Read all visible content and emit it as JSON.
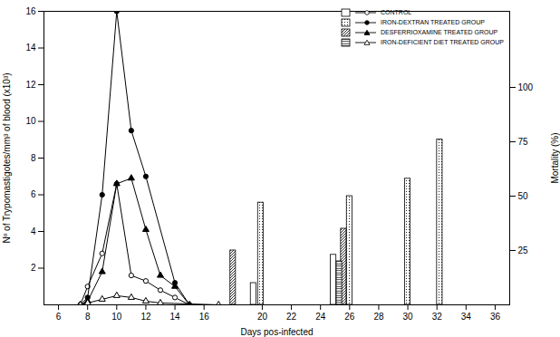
{
  "chart_data": {
    "type": "line",
    "x_label": "Days pos-infected",
    "y_label": "Nº of Trypomastigotes/mm³ of blood (x10³)",
    "y2_label": "Mortality (%)",
    "xlim": [
      5,
      37
    ],
    "xticks": [
      6,
      8,
      10,
      12,
      14,
      16,
      20,
      22,
      24,
      26,
      28,
      30,
      32,
      34,
      36
    ],
    "ylim": [
      0,
      16
    ],
    "yticks": [
      2,
      4,
      6,
      8,
      10,
      12,
      14,
      16
    ],
    "y2lim": [
      0,
      135
    ],
    "y2ticks": [
      25,
      50,
      75,
      100
    ],
    "legend": "top-right",
    "series": [
      {
        "name": "CONTROL",
        "color": "#000000",
        "marker": "circle-open",
        "x": [
          7.5,
          8,
          9,
          10,
          11,
          12,
          13,
          14,
          15
        ],
        "values": [
          0,
          1.0,
          2.8,
          6.6,
          1.6,
          1.3,
          0.8,
          0.4,
          0
        ],
        "mortality": {
          "type": "bar",
          "axis": "y2",
          "x": [
            19.4,
            24.9
          ],
          "values": [
            10,
            23
          ]
        }
      },
      {
        "name": "IRON-DEXTRAN TREATED GROUP",
        "color": "#000000",
        "marker": "circle",
        "x": [
          7.5,
          8,
          9,
          10,
          11,
          12,
          14,
          15
        ],
        "values": [
          0,
          0.4,
          6,
          16,
          9.5,
          7,
          1.2,
          0
        ],
        "mortality": {
          "type": "bar",
          "axis": "y2",
          "x": [
            19.9,
            26.0,
            30,
            32.2
          ],
          "values": [
            47,
            50,
            58,
            76
          ]
        }
      },
      {
        "name": "DESFERRIOXAMINE TREATED GROUP",
        "color": "#000000",
        "marker": "triangle",
        "x": [
          7.5,
          8,
          9,
          10,
          11,
          12,
          13,
          14,
          15
        ],
        "values": [
          0,
          0.2,
          1.8,
          6.6,
          6.9,
          4.1,
          1.6,
          1.0,
          0
        ],
        "mortality": {
          "type": "bar",
          "axis": "y2",
          "x": [
            18,
            25.6
          ],
          "values": [
            25,
            35
          ]
        }
      },
      {
        "name": "IRON-DEFICIENT DIET TREATED GROUP",
        "color": "#000000",
        "marker": "triangle-open",
        "x": [
          7.5,
          8,
          9,
          10,
          11,
          12,
          13,
          17
        ],
        "values": [
          0,
          0.1,
          0.3,
          0.5,
          0.4,
          0.2,
          0.1,
          0
        ],
        "mortality": {
          "type": "bar",
          "axis": "y2",
          "x": [
            25.3
          ],
          "values": [
            20
          ]
        }
      }
    ]
  }
}
